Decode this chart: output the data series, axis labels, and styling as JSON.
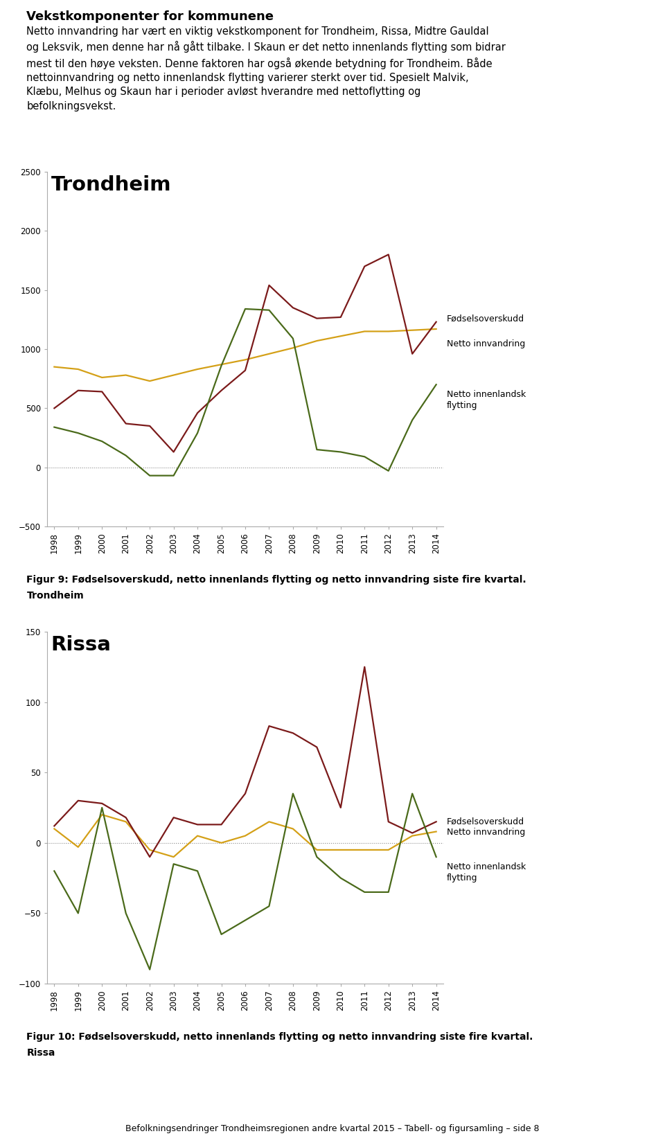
{
  "title_text": "Vekstkomponenter for kommunene",
  "description_lines": [
    "Netto innvandring har vært en viktig vekstkomponent for Trondheim, Rissa, Midtre Gauldal",
    "og Leksvik, men denne har nå gått tilbake. I Skaun er det netto innenlands flytting som bidrar",
    "mest til den høye veksten. Denne faktoren har også økende betydning for Trondheim. Både",
    "nettoinnvandring og netto innenlandsk flytting varierer sterkt over tid. Spesielt Malvik,",
    "Klæbu, Melhus og Skaun har i perioder avløst hverandre med nettoflytting og",
    "befolkningsvekst."
  ],
  "fig9_line1": "Figur 9: Fødselsoverskudd, netto innenlands flytting og netto innvandring siste fire kvartal.",
  "fig9_line2": "Trondheim",
  "fig10_line1": "Figur 10: Fødselsoverskudd, netto innenlands flytting og netto innvandring siste fire kvartal.",
  "fig10_line2": "Rissa",
  "footer": "Befolkningsendringer Trondheimsregionen andre kvartal 2015 – Tabell- og figursamling – side 8",
  "years": [
    "1998",
    "1999",
    "2000",
    "2001",
    "2002",
    "2003",
    "2004",
    "2005",
    "2006",
    "2007",
    "2008",
    "2009",
    "2010",
    "2011",
    "2012",
    "2013",
    "2014"
  ],
  "color_fodsels": "#D4A017",
  "color_netto_innv": "#7B1A1A",
  "color_netto_innenl": "#4A6A1A",
  "legend_fodsels": "Fødselsoverskudd",
  "legend_innv": "Netto innvandring",
  "legend_innenl": "Netto innenlandsk\nflytting",
  "trondheim_title": "Trondheim",
  "trondheim_ylim": [
    -500,
    2500
  ],
  "trondheim_yticks": [
    -500,
    0,
    500,
    1000,
    1500,
    2000,
    2500
  ],
  "trondheim_fodsels": [
    850,
    830,
    760,
    780,
    730,
    780,
    830,
    870,
    910,
    960,
    1010,
    1070,
    1110,
    1150,
    1150,
    1160,
    1170
  ],
  "trondheim_netto_innv": [
    500,
    650,
    640,
    370,
    350,
    130,
    460,
    650,
    820,
    1540,
    1350,
    1260,
    1270,
    1700,
    1800,
    960,
    1230
  ],
  "trondheim_netto_innenl": [
    340,
    290,
    220,
    100,
    -70,
    -70,
    290,
    860,
    1340,
    1330,
    1090,
    150,
    130,
    90,
    -30,
    400,
    700
  ],
  "rissa_title": "Rissa",
  "rissa_ylim": [
    -100,
    150
  ],
  "rissa_yticks": [
    -100,
    -50,
    0,
    50,
    100,
    150
  ],
  "rissa_fodsels": [
    10,
    -3,
    20,
    15,
    -5,
    -10,
    5,
    0,
    5,
    15,
    10,
    -5,
    -5,
    -5,
    -5,
    5,
    8
  ],
  "rissa_netto_innv": [
    12,
    30,
    28,
    18,
    -10,
    18,
    13,
    13,
    35,
    83,
    78,
    68,
    25,
    125,
    15,
    7,
    15
  ],
  "rissa_netto_innenl": [
    -20,
    -50,
    25,
    -50,
    -90,
    -15,
    -20,
    -65,
    -55,
    -45,
    35,
    -10,
    -25,
    -35,
    -35,
    35,
    -10
  ]
}
